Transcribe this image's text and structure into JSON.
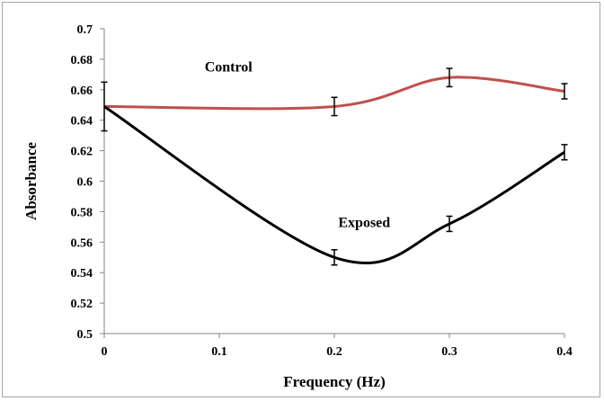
{
  "chart_data": {
    "type": "line",
    "xlabel": "Frequency  (Hz)",
    "ylabel": "Absorbance",
    "xlim": [
      0,
      0.4
    ],
    "ylim": [
      0.5,
      0.7
    ],
    "x_ticks": [
      0,
      0.1,
      0.2,
      0.3,
      0.4
    ],
    "x_tick_labels": [
      "0",
      "0.1",
      "0.2",
      "0.3",
      "0.4"
    ],
    "y_ticks": [
      0.5,
      0.52,
      0.54,
      0.56,
      0.58,
      0.6,
      0.62,
      0.64,
      0.66,
      0.68,
      0.7
    ],
    "y_tick_labels": [
      "0.5",
      "0.52",
      "0.54",
      "0.56",
      "0.58",
      "0.6",
      "0.62",
      "0.64",
      "0.66",
      "0.68",
      "0.7"
    ],
    "grid": false,
    "smooth": true,
    "series": [
      {
        "name": "Control",
        "color": "#c0504d",
        "x": [
          0,
          0.2,
          0.3,
          0.4
        ],
        "values": [
          0.649,
          0.649,
          0.668,
          0.659
        ],
        "error": [
          0.016,
          0.006,
          0.006,
          0.005
        ]
      },
      {
        "name": "Exposed",
        "color": "#000000",
        "x": [
          0,
          0.2,
          0.3,
          0.4
        ],
        "values": [
          0.649,
          0.55,
          0.572,
          0.619
        ],
        "error": [
          0.0,
          0.005,
          0.005,
          0.005
        ]
      }
    ]
  }
}
